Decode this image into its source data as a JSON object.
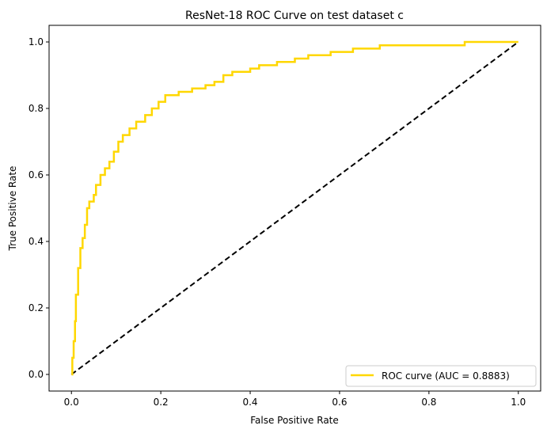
{
  "chart_data": {
    "type": "line",
    "title": "ResNet-18 ROC Curve on test dataset c",
    "xlabel": "False Positive Rate",
    "ylabel": "True Positive Rate",
    "xlim": [
      -0.05,
      1.05
    ],
    "ylim": [
      -0.05,
      1.05
    ],
    "xticks": [
      "0.0",
      "0.2",
      "0.4",
      "0.6",
      "0.8",
      "1.0"
    ],
    "yticks": [
      "0.0",
      "0.2",
      "0.4",
      "0.6",
      "0.8",
      "1.0"
    ],
    "grid": false,
    "legend_position": "lower-right",
    "series": [
      {
        "name": "ROC curve (AUC = 0.8883)",
        "color": "#FFD700",
        "style": "solid",
        "x": [
          0,
          0.002,
          0.005,
          0.008,
          0.01,
          0.015,
          0.02,
          0.025,
          0.03,
          0.035,
          0.04,
          0.05,
          0.055,
          0.065,
          0.075,
          0.085,
          0.095,
          0.105,
          0.115,
          0.13,
          0.145,
          0.165,
          0.18,
          0.195,
          0.21,
          0.24,
          0.27,
          0.3,
          0.32,
          0.34,
          0.36,
          0.4,
          0.42,
          0.46,
          0.5,
          0.53,
          0.58,
          0.63,
          0.69,
          0.86,
          0.88,
          1.0
        ],
        "y": [
          0,
          0.05,
          0.1,
          0.16,
          0.24,
          0.32,
          0.38,
          0.41,
          0.45,
          0.5,
          0.52,
          0.54,
          0.57,
          0.6,
          0.62,
          0.64,
          0.67,
          0.7,
          0.72,
          0.74,
          0.76,
          0.78,
          0.8,
          0.82,
          0.84,
          0.85,
          0.86,
          0.87,
          0.88,
          0.9,
          0.91,
          0.92,
          0.93,
          0.94,
          0.95,
          0.96,
          0.97,
          0.98,
          0.99,
          0.99,
          1.0,
          1.0
        ]
      },
      {
        "color": "#000000",
        "style": "dashed",
        "x": [
          0,
          1
        ],
        "y": [
          0,
          1
        ]
      }
    ]
  }
}
